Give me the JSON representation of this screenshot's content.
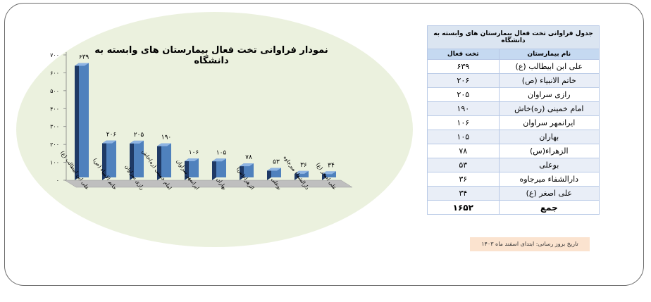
{
  "chart_data": {
    "type": "bar",
    "title": "نمودار فراوانی تخت فعال بیمارستان های وابسته به دانشگاه",
    "categories": [
      "علی ابن ابیطالب (ع)",
      "خاتم الانبیاء (ص)",
      "رازی سراوان",
      "امام خمینی (ره)خاش",
      "ایرانمهر سراوان",
      "بهاران",
      "الزهراء(س)",
      "بوعلی",
      "دارالشفاء میرجاوه",
      "علی اصغر (ع)"
    ],
    "values": [
      639,
      206,
      205,
      190,
      106,
      105,
      78,
      53,
      36,
      34
    ],
    "value_labels": [
      "۶۳۹",
      "۲۰۶",
      "۲۰۵",
      "۱۹۰",
      "۱۰۶",
      "۱۰۵",
      "۷۸",
      "۵۳",
      "۳۶",
      "۳۴"
    ],
    "yticks": [
      0,
      100,
      200,
      300,
      400,
      500,
      600,
      700
    ],
    "ytick_labels": [
      "۰",
      "۱۰۰",
      "۲۰۰",
      "۳۰۰",
      "۴۰۰",
      "۵۰۰",
      "۶۰۰",
      "۷۰۰"
    ],
    "ylim": [
      0,
      700
    ],
    "xlabel": "",
    "ylabel": "",
    "grid": false,
    "legend": "none",
    "colors": {
      "bar_front": "#4f81bd",
      "bar_side": "#1f3a66",
      "bar_top": "#8eb4e3",
      "floor": "#bfbfbf",
      "panel": "#ebf1de"
    }
  },
  "table": {
    "caption": "جدول فراوانی تخت فعال بیمارستان های وابسته به  دانشگاه",
    "headers": {
      "name": "نام بیمارستان",
      "beds": "تخت فعال"
    },
    "rows": [
      {
        "name": "علی ابن ابیطالب (ع)",
        "beds": "۶۳۹"
      },
      {
        "name": "خاتم الانبیاء (ص)",
        "beds": "۲۰۶"
      },
      {
        "name": "رازی سراوان",
        "beds": "۲۰۵"
      },
      {
        "name": "امام خمینی (ره)خاش",
        "beds": "۱۹۰"
      },
      {
        "name": "ایرانمهر سراوان",
        "beds": "۱۰۶"
      },
      {
        "name": "بهاران",
        "beds": "۱۰۵"
      },
      {
        "name": "الزهراء(س)",
        "beds": "۷۸"
      },
      {
        "name": "بوعلی",
        "beds": "۵۳"
      },
      {
        "name": "دارالشفاء میرجاوه",
        "beds": "۳۶"
      },
      {
        "name": "علی اصغر (ع)",
        "beds": "۳۴"
      }
    ],
    "total": {
      "name": "جمع",
      "beds": "۱۶۵۲"
    }
  },
  "update_note": "تاریخ بروز رسانی: ابتدای اسفند ماه ۱۴۰۳"
}
